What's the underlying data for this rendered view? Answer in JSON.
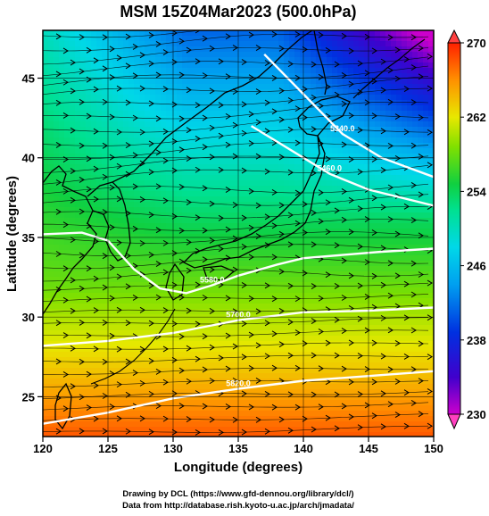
{
  "title": "MSM 15Z04Mar2023 (500.0hPa)",
  "xlabel": "Longitude (degrees)",
  "ylabel": "Latitude  (degrees)",
  "x_ticks": [
    "120",
    "125",
    "130",
    "135",
    "140",
    "145",
    "150"
  ],
  "y_ticks": [
    "25",
    "30",
    "35",
    "40",
    "45"
  ],
  "colorbar": {
    "ticks": [
      "230",
      "238",
      "246",
      "254",
      "262",
      "270"
    ],
    "range": [
      230,
      270
    ]
  },
  "contours": [
    {
      "label": "5820.0"
    },
    {
      "label": "5700.0"
    },
    {
      "label": "5580.0"
    },
    {
      "label": "5460.0"
    },
    {
      "label": "5340.0"
    }
  ],
  "credits": {
    "line1": "Drawing by DCL (https://www.gfd-dennou.org/library/dcl/)",
    "line2": "Data from http://database.rish.kyoto-u.ac.jp/arch/jmadata/"
  },
  "chart_data": {
    "type": "heatmap",
    "title": "MSM 15Z04Mar2023 (500.0hPa)",
    "xlabel": "Longitude (degrees)",
    "ylabel": "Latitude  (degrees)",
    "xlim": [
      120,
      150
    ],
    "ylim": [
      22.5,
      48
    ],
    "colorbar_range": [
      230,
      270
    ],
    "colorbar_ticks": [
      230,
      238,
      246,
      254,
      262,
      270
    ],
    "contour_lines": [
      {
        "label": "5820.0",
        "lon": [
          120,
          125,
          130,
          135,
          140,
          145,
          150
        ],
        "lat": [
          23.3,
          24.0,
          24.9,
          25.5,
          26.0,
          26.3,
          26.6
        ]
      },
      {
        "label": "5700.0",
        "lon": [
          120,
          125,
          130,
          135,
          140,
          145,
          150
        ],
        "lat": [
          28.2,
          28.5,
          29.0,
          29.8,
          30.3,
          30.4,
          30.6
        ]
      },
      {
        "label": "5580.0",
        "lon": [
          120,
          123,
          125,
          127,
          129,
          131,
          133,
          135,
          138,
          140,
          143,
          146,
          150
        ],
        "lat": [
          35.2,
          35.3,
          34.8,
          33.0,
          31.8,
          31.5,
          32.0,
          32.6,
          33.3,
          33.7,
          33.9,
          34.1,
          34.3
        ]
      },
      {
        "label": "5460.0",
        "lon": [
          136,
          138,
          140,
          142,
          145,
          150
        ],
        "lat": [
          42.0,
          41.0,
          40.0,
          39.0,
          38.0,
          37.0
        ]
      },
      {
        "label": "5340.0",
        "lon": [
          137,
          140,
          143,
          146,
          150
        ],
        "lat": [
          46.5,
          44.0,
          41.5,
          40.0,
          38.8
        ]
      }
    ]
  }
}
